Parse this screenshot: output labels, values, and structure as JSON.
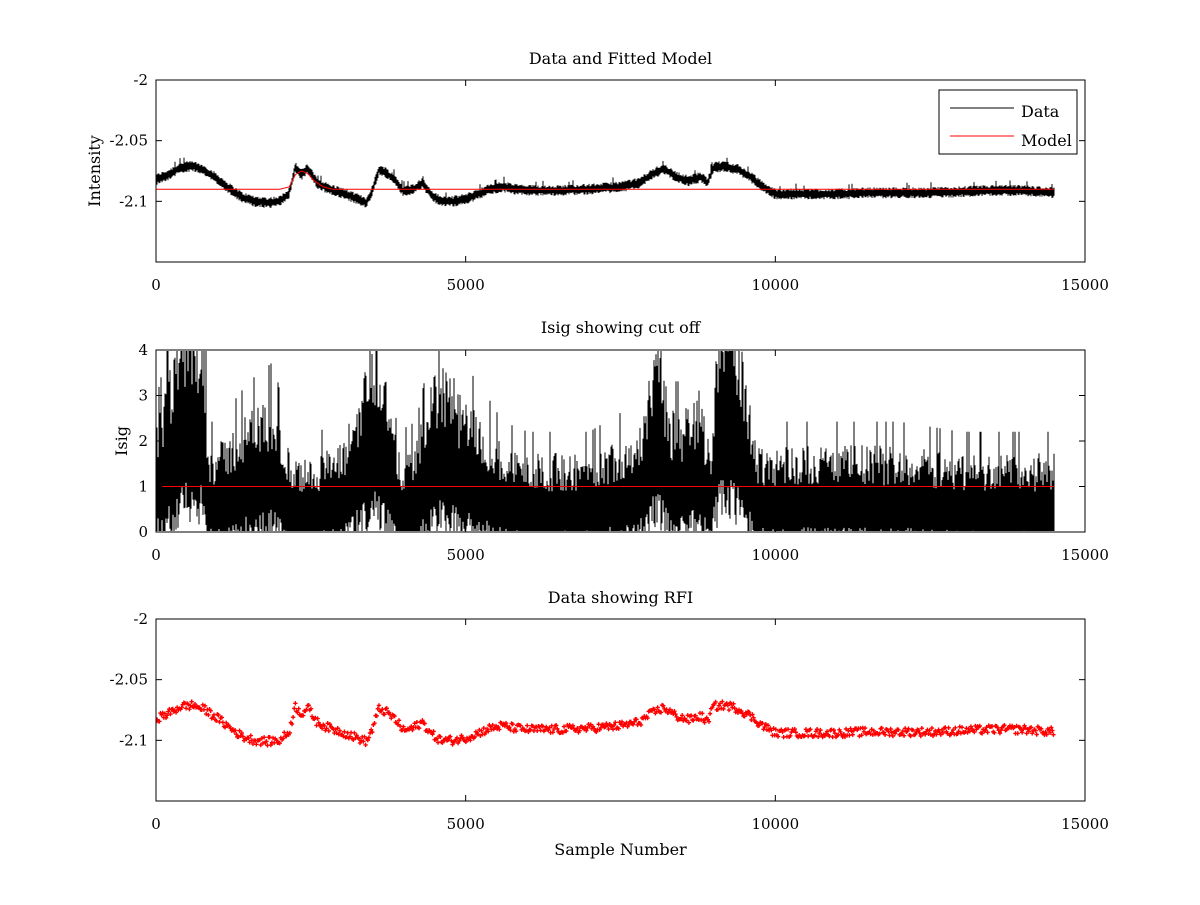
{
  "chart_data": [
    {
      "type": "line",
      "title": "Data and Fitted Model",
      "xlabel": "",
      "ylabel": "Intensity",
      "xlim": [
        0,
        15000
      ],
      "ylim": [
        -2.15,
        -2.0
      ],
      "xticks": [
        0,
        5000,
        10000,
        15000
      ],
      "xtick_labels": [
        "0",
        "5000",
        "10000",
        "15000"
      ],
      "yticks": [
        -2.0,
        -2.05,
        -2.1
      ],
      "ytick_labels": [
        "-2",
        "-2.05",
        "-2.1"
      ],
      "grid": false,
      "legend": {
        "position": "top-right",
        "entries": [
          "Data",
          "Model"
        ]
      },
      "series": [
        {
          "name": "Data",
          "color": "#000000",
          "style": "line",
          "x": [
            0,
            200,
            400,
            600,
            800,
            1000,
            1200,
            1400,
            1600,
            1800,
            2000,
            2150,
            2250,
            2350,
            2450,
            2600,
            2800,
            3000,
            3200,
            3400,
            3500,
            3600,
            3700,
            3850,
            4000,
            4150,
            4300,
            4450,
            4600,
            4800,
            5000,
            5200,
            5400,
            5600,
            5800,
            6000,
            6500,
            7000,
            7500,
            7800,
            8000,
            8200,
            8400,
            8600,
            8800,
            8900,
            9000,
            9200,
            9400,
            9600,
            9800,
            10000,
            10500,
            11000,
            11500,
            12000,
            12500,
            13000,
            13500,
            14000,
            14500
          ],
          "values": [
            -2.082,
            -2.078,
            -2.072,
            -2.071,
            -2.075,
            -2.082,
            -2.09,
            -2.097,
            -2.1,
            -2.101,
            -2.1,
            -2.093,
            -2.072,
            -2.078,
            -2.073,
            -2.085,
            -2.09,
            -2.093,
            -2.097,
            -2.101,
            -2.09,
            -2.074,
            -2.076,
            -2.082,
            -2.092,
            -2.09,
            -2.085,
            -2.095,
            -2.1,
            -2.1,
            -2.098,
            -2.094,
            -2.09,
            -2.088,
            -2.09,
            -2.091,
            -2.091,
            -2.09,
            -2.088,
            -2.085,
            -2.078,
            -2.073,
            -2.08,
            -2.083,
            -2.08,
            -2.085,
            -2.072,
            -2.071,
            -2.074,
            -2.08,
            -2.088,
            -2.094,
            -2.094,
            -2.094,
            -2.093,
            -2.093,
            -2.093,
            -2.092,
            -2.091,
            -2.091,
            -2.093
          ],
          "noise": 0.0035
        },
        {
          "name": "Model",
          "color": "#ff0000",
          "style": "line",
          "x": [
            0,
            2000,
            2150,
            2250,
            2350,
            2450,
            2550,
            2700,
            2850,
            3000,
            14500
          ],
          "values": [
            -2.09,
            -2.09,
            -2.088,
            -2.078,
            -2.075,
            -2.077,
            -2.083,
            -2.088,
            -2.09,
            -2.09,
            -2.09
          ]
        }
      ]
    },
    {
      "type": "line",
      "title": "Isig showing cut off",
      "xlabel": "",
      "ylabel": "Isig",
      "xlim": [
        0,
        15000
      ],
      "ylim": [
        0,
        4
      ],
      "xticks": [
        0,
        5000,
        10000,
        15000
      ],
      "xtick_labels": [
        "0",
        "5000",
        "10000",
        "15000"
      ],
      "yticks": [
        0,
        1,
        2,
        3,
        4
      ],
      "ytick_labels": [
        "0",
        "1",
        "2",
        "3",
        "4"
      ],
      "grid": false,
      "series": [
        {
          "color": "#000000",
          "style": "line",
          "x": [
            0,
            200,
            400,
            500,
            600,
            700,
            800,
            850,
            1000,
            1500,
            1900,
            2100,
            2300,
            2600,
            3000,
            3300,
            3500,
            3700,
            3900,
            4200,
            4500,
            4700,
            4900,
            5200,
            5600,
            6000,
            7000,
            7800,
            8100,
            8300,
            8500,
            8800,
            8950,
            9100,
            9300,
            9500,
            9700,
            10000,
            11000,
            12000,
            13000,
            14000,
            14500
          ],
          "values": [
            0.8,
            1.4,
            2.1,
            2.3,
            2.1,
            2.2,
            1.5,
            0.6,
            0.6,
            1.0,
            1.2,
            0.6,
            0.4,
            0.5,
            0.6,
            1.3,
            2.0,
            1.6,
            0.5,
            0.6,
            1.5,
            1.6,
            1.2,
            1.0,
            0.6,
            0.5,
            0.5,
            0.8,
            1.9,
            1.0,
            1.0,
            1.3,
            0.5,
            2.5,
            2.3,
            1.6,
            0.6,
            0.6,
            0.6,
            0.6,
            0.5,
            0.5,
            0.5
          ],
          "noise": 0.5
        },
        {
          "color": "#ff0000",
          "style": "line",
          "x": [
            0,
            14500
          ],
          "values": [
            1,
            1
          ]
        }
      ]
    },
    {
      "type": "scatter",
      "title": "Data showing RFI",
      "xlabel": "Sample Number",
      "ylabel": "",
      "xlim": [
        0,
        15000
      ],
      "ylim": [
        -2.15,
        -2.0
      ],
      "xticks": [
        0,
        5000,
        10000,
        15000
      ],
      "xtick_labels": [
        "0",
        "5000",
        "10000",
        "15000"
      ],
      "yticks": [
        -2.0,
        -2.05,
        -2.1
      ],
      "ytick_labels": [
        "-2",
        "-2.05",
        "-2.1"
      ],
      "grid": false,
      "series": [
        {
          "color": "#ff0000",
          "style": "markers",
          "x": [
            0,
            200,
            400,
            600,
            800,
            1000,
            1200,
            1400,
            1600,
            1800,
            2000,
            2150,
            2250,
            2350,
            2450,
            2600,
            2800,
            3000,
            3200,
            3400,
            3500,
            3600,
            3700,
            3850,
            4000,
            4150,
            4300,
            4450,
            4600,
            4800,
            5000,
            5200,
            5400,
            5600,
            5800,
            6000,
            6500,
            7000,
            7500,
            7800,
            8000,
            8200,
            8400,
            8600,
            8800,
            8900,
            9000,
            9200,
            9400,
            9600,
            9800,
            10000,
            10500,
            11000,
            11500,
            12000,
            12500,
            13000,
            13500,
            14000,
            14500
          ],
          "values": [
            -2.082,
            -2.078,
            -2.072,
            -2.071,
            -2.075,
            -2.082,
            -2.09,
            -2.097,
            -2.1,
            -2.101,
            -2.1,
            -2.093,
            -2.072,
            -2.078,
            -2.073,
            -2.085,
            -2.09,
            -2.093,
            -2.097,
            -2.101,
            -2.09,
            -2.074,
            -2.076,
            -2.082,
            -2.092,
            -2.09,
            -2.085,
            -2.095,
            -2.1,
            -2.1,
            -2.098,
            -2.094,
            -2.09,
            -2.088,
            -2.09,
            -2.091,
            -2.091,
            -2.09,
            -2.088,
            -2.085,
            -2.078,
            -2.073,
            -2.08,
            -2.083,
            -2.08,
            -2.085,
            -2.072,
            -2.071,
            -2.074,
            -2.08,
            -2.088,
            -2.094,
            -2.094,
            -2.094,
            -2.093,
            -2.093,
            -2.093,
            -2.092,
            -2.091,
            -2.091,
            -2.093
          ],
          "noise": 0.0035
        }
      ]
    }
  ]
}
